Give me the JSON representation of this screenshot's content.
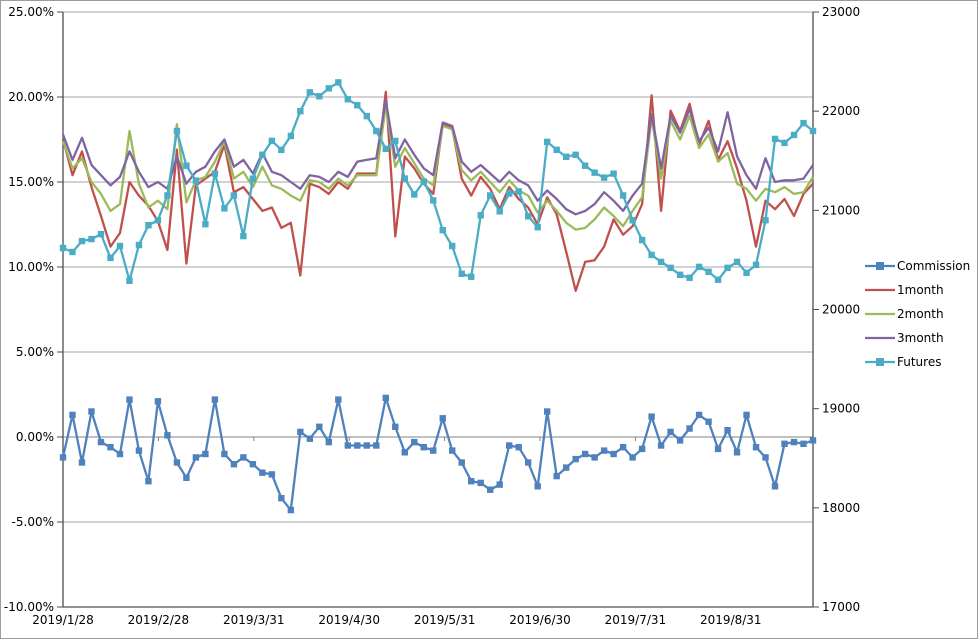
{
  "chart_data": {
    "type": "line",
    "title": "",
    "grid": true,
    "legend_position": "right",
    "x_axis": {
      "type": "category",
      "tick_labels": [
        "2019/1/28",
        "2019/2/28",
        "2019/3/31",
        "2019/4/30",
        "2019/5/31",
        "2019/6/30",
        "2019/7/31",
        "2019/8/31"
      ],
      "tick_spacing_fraction": 0.1272
    },
    "y_axis_left": {
      "min": -10,
      "max": 25,
      "step": 5,
      "format": "percent",
      "tick_labels": [
        "25.00%",
        "20.00%",
        "15.00%",
        "10.00%",
        "5.00%",
        "0.00%",
        "-5.00%",
        "-10.00%"
      ]
    },
    "y_axis_right": {
      "min": 17000,
      "max": 23000,
      "step": 1000,
      "tick_labels": [
        "23000",
        "22000",
        "21000",
        "20000",
        "19000",
        "18000",
        "17000"
      ]
    },
    "colors": {
      "grid": "#a6a6a6",
      "axis": "#4d4d4d",
      "zero_axis": "#808080"
    },
    "series": [
      {
        "name": "Commission",
        "axis": "left",
        "color": "#4F81BD",
        "marker": "square",
        "values": [
          -1.2,
          1.3,
          -1.5,
          1.5,
          -0.3,
          -0.6,
          -1.0,
          2.2,
          -0.8,
          -2.6,
          2.1,
          0.1,
          -1.5,
          -2.4,
          -1.2,
          -1.0,
          2.2,
          -1.0,
          -1.6,
          -1.2,
          -1.6,
          -2.1,
          -2.2,
          -3.6,
          -4.3,
          0.3,
          -0.1,
          0.6,
          -0.3,
          2.2,
          -0.5,
          -0.5,
          -0.5,
          -0.5,
          2.3,
          0.6,
          -0.9,
          -0.3,
          -0.6,
          -0.8,
          1.1,
          -0.8,
          -1.5,
          -2.6,
          -2.7,
          -3.1,
          -2.8,
          -0.5,
          -0.6,
          -1.5,
          -2.9,
          1.5,
          -2.3,
          -1.8,
          -1.3,
          -1.0,
          -1.2,
          -0.8,
          -1.0,
          -0.6,
          -1.2,
          -0.7,
          1.2,
          -0.5,
          0.3,
          -0.2,
          0.5,
          1.3,
          0.9,
          -0.7,
          0.4,
          -0.9,
          1.3,
          -0.6,
          -1.2,
          -2.9,
          -0.4,
          -0.3,
          -0.4,
          -0.2
        ]
      },
      {
        "name": "1month",
        "axis": "left",
        "color": "#C0504D",
        "marker": "none",
        "values": [
          17.5,
          15.4,
          16.8,
          14.7,
          13.0,
          11.2,
          12.0,
          15.0,
          14.2,
          13.6,
          12.7,
          11.0,
          16.9,
          10.2,
          14.8,
          15.2,
          15.6,
          17.2,
          14.4,
          14.7,
          14.0,
          13.3,
          13.5,
          12.3,
          12.6,
          9.5,
          14.9,
          14.7,
          14.3,
          15.0,
          14.6,
          15.5,
          15.5,
          15.5,
          20.3,
          11.8,
          16.5,
          15.8,
          14.9,
          14.3,
          18.4,
          18.2,
          15.2,
          14.2,
          15.3,
          14.6,
          13.4,
          14.7,
          14.0,
          13.5,
          12.5,
          14.1,
          13.1,
          10.9,
          8.6,
          10.3,
          10.4,
          11.2,
          12.8,
          11.9,
          12.4,
          13.7,
          20.1,
          13.3,
          19.2,
          18.0,
          19.6,
          17.2,
          18.6,
          16.3,
          17.4,
          15.8,
          13.9,
          11.2,
          13.9,
          13.4,
          14.0,
          13.0,
          14.3,
          14.9
        ]
      },
      {
        "name": "2month",
        "axis": "left",
        "color": "#9BBB59",
        "marker": "none",
        "values": [
          17.4,
          15.8,
          16.4,
          15.0,
          14.3,
          13.3,
          13.7,
          18.0,
          14.9,
          13.5,
          13.9,
          13.4,
          18.4,
          13.8,
          15.1,
          15.3,
          16.2,
          17.4,
          15.2,
          15.6,
          14.7,
          15.9,
          14.8,
          14.6,
          14.2,
          13.9,
          15.1,
          15.0,
          14.6,
          15.2,
          14.8,
          15.4,
          15.4,
          15.4,
          19.5,
          15.9,
          17.0,
          16.1,
          15.2,
          14.8,
          18.3,
          18.1,
          15.7,
          15.1,
          15.6,
          15.0,
          14.4,
          15.1,
          14.5,
          14.2,
          13.2,
          13.9,
          13.3,
          12.6,
          12.2,
          12.3,
          12.8,
          13.5,
          13.0,
          12.4,
          13.3,
          14.1,
          18.8,
          15.2,
          18.6,
          17.5,
          18.9,
          17.0,
          17.8,
          16.2,
          16.7,
          14.9,
          14.6,
          13.9,
          14.6,
          14.4,
          14.7,
          14.3,
          14.4,
          15.3
        ]
      },
      {
        "name": "3month",
        "axis": "left",
        "color": "#8064A2",
        "marker": "none",
        "values": [
          17.8,
          16.3,
          17.6,
          16.0,
          15.4,
          14.8,
          15.3,
          16.8,
          15.6,
          14.7,
          15.0,
          14.6,
          16.5,
          14.9,
          15.6,
          15.9,
          16.8,
          17.5,
          15.9,
          16.3,
          15.5,
          16.7,
          15.6,
          15.4,
          15.0,
          14.6,
          15.4,
          15.3,
          15.0,
          15.6,
          15.3,
          16.2,
          16.3,
          16.4,
          19.8,
          16.4,
          17.5,
          16.6,
          15.8,
          15.4,
          18.5,
          18.3,
          16.2,
          15.6,
          16.0,
          15.5,
          15.0,
          15.6,
          15.1,
          14.8,
          13.9,
          14.5,
          14.0,
          13.4,
          13.1,
          13.3,
          13.7,
          14.4,
          13.9,
          13.3,
          14.2,
          14.9,
          19.0,
          15.8,
          18.9,
          17.9,
          19.3,
          17.4,
          18.2,
          16.8,
          19.1,
          16.5,
          15.4,
          14.6,
          16.4,
          15.0,
          15.1,
          15.1,
          15.2,
          16.0
        ]
      },
      {
        "name": "Futures",
        "axis": "right",
        "color": "#4BACC6",
        "marker": "square",
        "values": [
          20620,
          20580,
          20690,
          20710,
          20760,
          20520,
          20640,
          20290,
          20650,
          20850,
          20900,
          21150,
          21800,
          21450,
          21300,
          20860,
          21370,
          21020,
          21150,
          20740,
          21320,
          21560,
          21700,
          21610,
          21750,
          22000,
          22190,
          22150,
          22230,
          22290,
          22120,
          22060,
          21950,
          21800,
          21620,
          21700,
          21320,
          21160,
          21290,
          21100,
          20800,
          20640,
          20360,
          20330,
          20950,
          21150,
          20990,
          21170,
          21190,
          20940,
          20830,
          21690,
          21610,
          21540,
          21560,
          21450,
          21380,
          21330,
          21370,
          21150,
          20900,
          20700,
          20550,
          20480,
          20420,
          20350,
          20320,
          20430,
          20380,
          20300,
          20420,
          20480,
          20370,
          20450,
          20900,
          21720,
          21680,
          21760,
          21880,
          21800
        ]
      }
    ]
  }
}
